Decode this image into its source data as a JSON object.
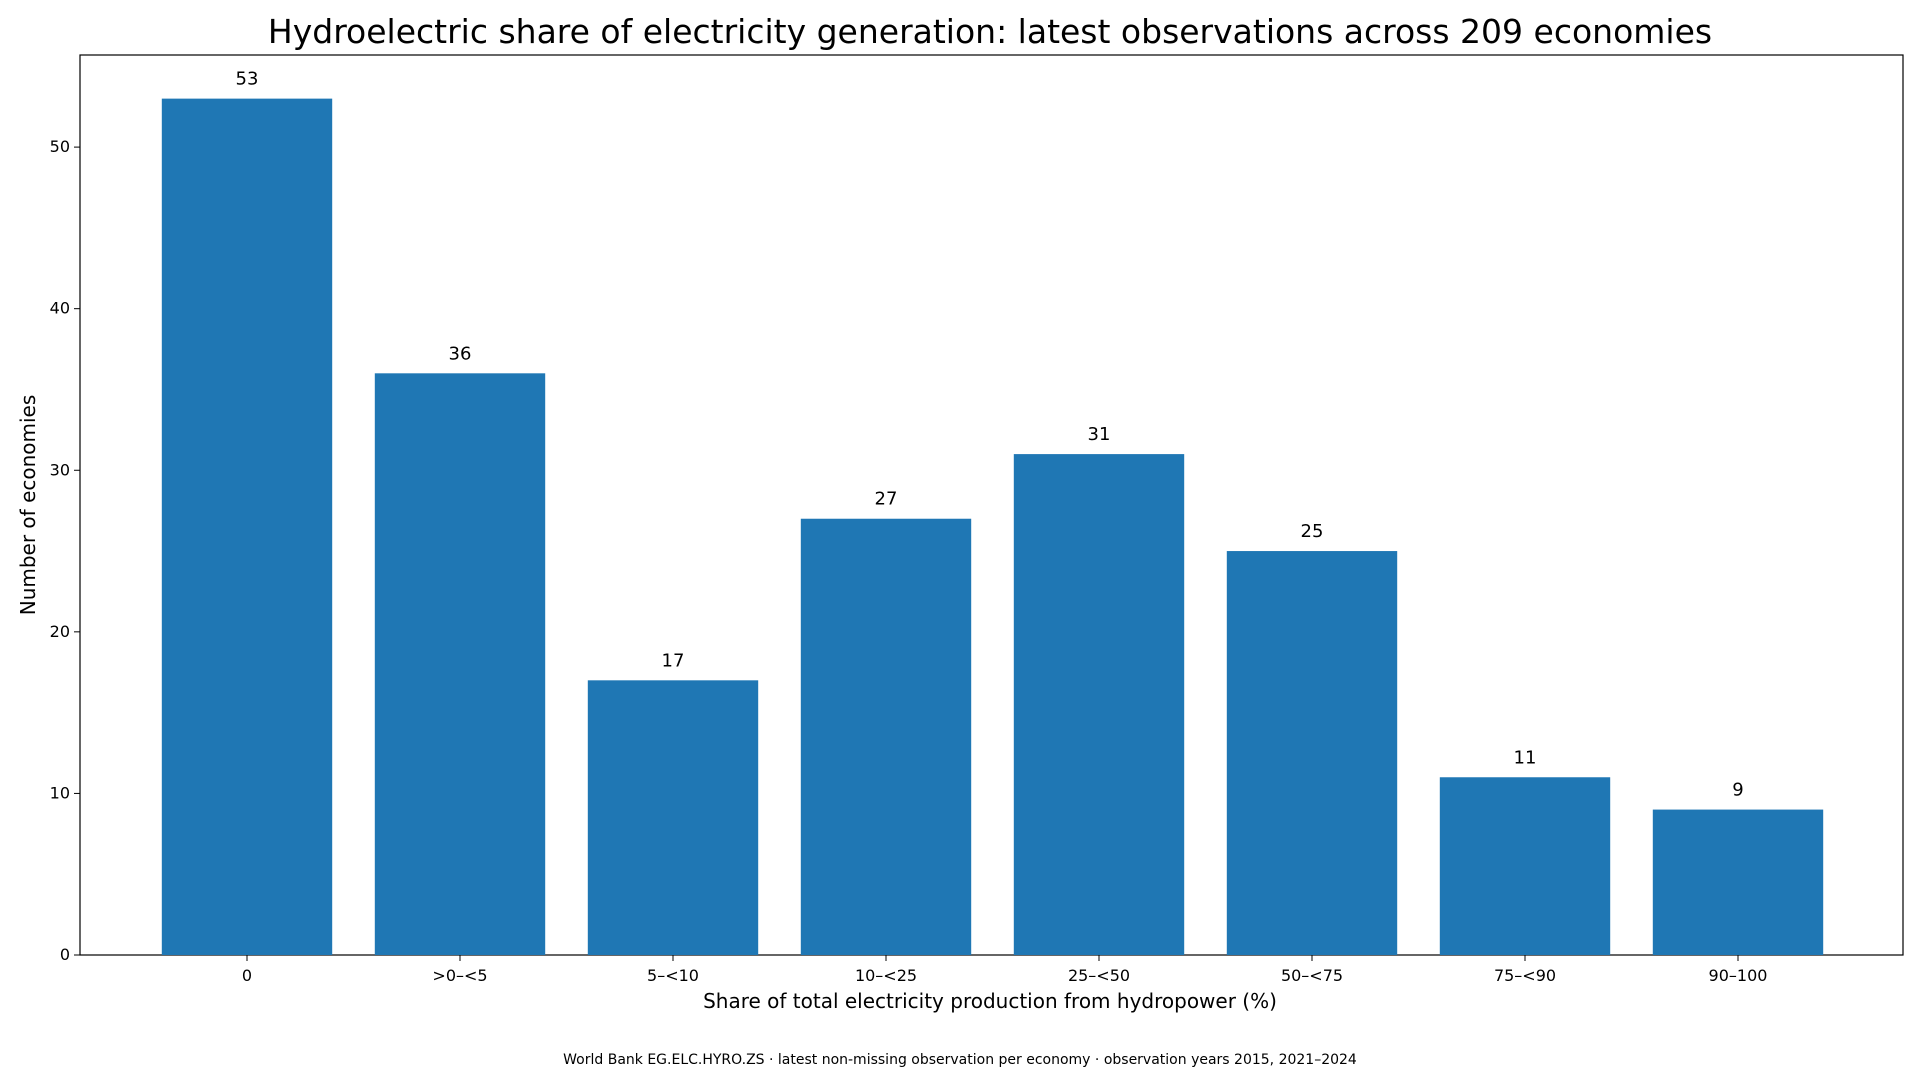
{
  "chart_data": {
    "type": "bar",
    "title": "Hydroelectric share of electricity generation: latest observations across 209 economies",
    "xlabel": "Share of total electricity production from hydropower (%)",
    "ylabel": "Number of economies",
    "categories": [
      "0",
      ">0–<5",
      "5–<10",
      "10–<25",
      "25–<50",
      "50–<75",
      "75–<90",
      "90–100"
    ],
    "values": [
      53,
      36,
      17,
      27,
      31,
      25,
      11,
      9
    ],
    "ylim": [
      0,
      55.7
    ],
    "yticks": [
      0,
      10,
      20,
      30,
      40,
      50
    ],
    "bar_color": "#1f77b4",
    "grid": false,
    "footnote": "World Bank EG.ELC.HYRO.ZS · latest non-missing observation per economy · observation years 2015, 2021–2024"
  }
}
